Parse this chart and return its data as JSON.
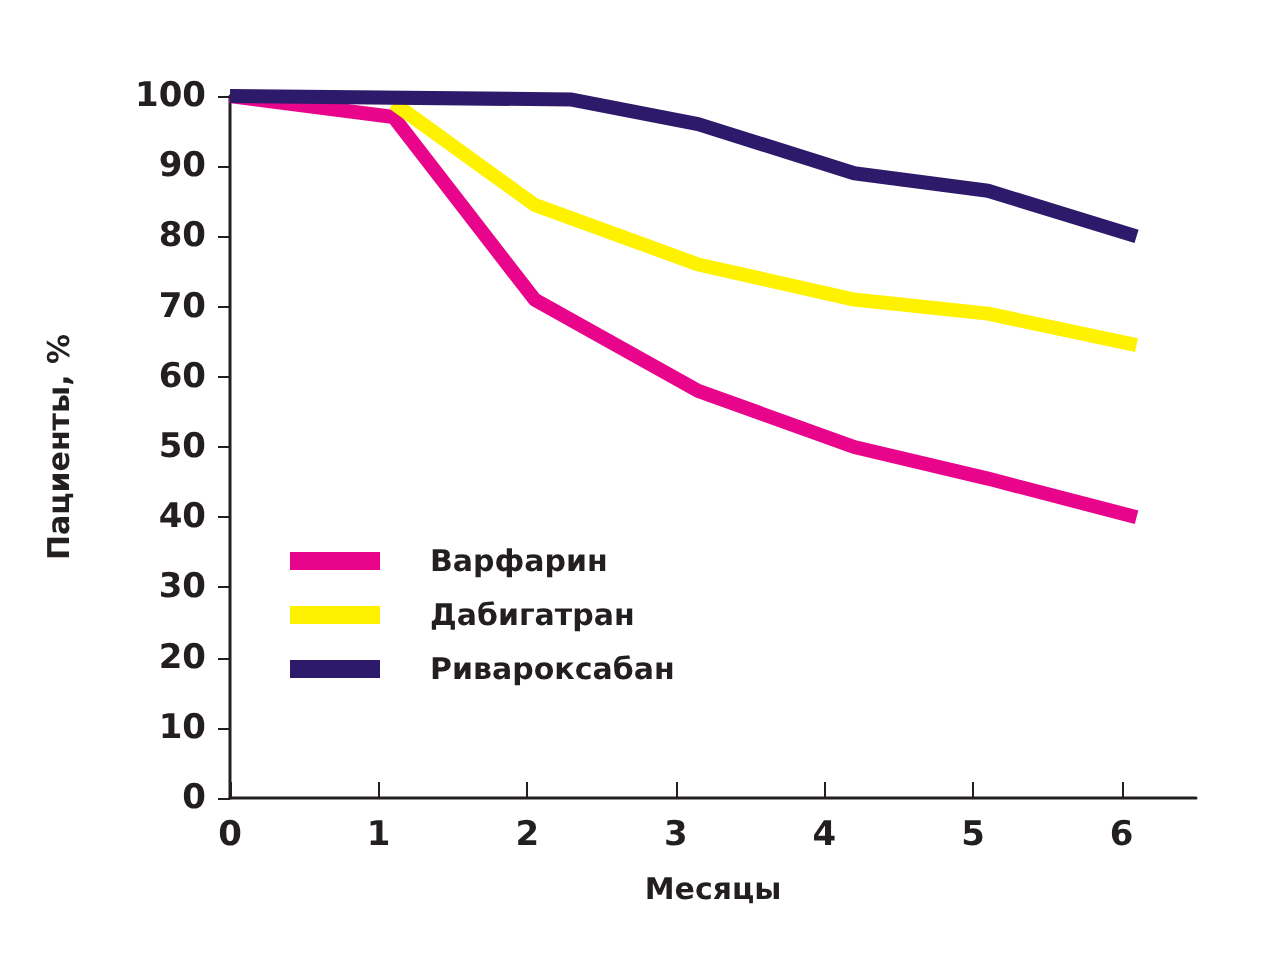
{
  "chart_data": {
    "type": "line",
    "xlabel": "Месяцы",
    "ylabel": "Пациенты, %",
    "xlim": [
      0,
      6.5
    ],
    "xticks": [
      0,
      1,
      2,
      3,
      4,
      5,
      6
    ],
    "ylim": [
      0,
      100
    ],
    "yticks": [
      0,
      10,
      20,
      30,
      40,
      50,
      60,
      70,
      80,
      90,
      100
    ],
    "grid": false,
    "legend": "bottom left",
    "marker": "none",
    "line_style": "solid",
    "series": [
      {
        "name": "Варфарин",
        "color": "#e8058c",
        "x": [
          0,
          1.1,
          2.05,
          3.15,
          4.2,
          5.1,
          6.1
        ],
        "values": [
          100,
          97,
          71,
          58,
          50,
          45.5,
          40
        ]
      },
      {
        "name": "Дабигатран",
        "color": "#fff200",
        "x": [
          1.1,
          2.05,
          3.15,
          4.2,
          5.1,
          6.1
        ],
        "values": [
          99,
          84.5,
          76,
          71,
          69,
          64.5
        ]
      },
      {
        "name": "Ривароксабан",
        "color": "#2e1a6b",
        "x": [
          0,
          2.3,
          3.15,
          4.2,
          5.1,
          6.1
        ],
        "values": [
          100,
          99.5,
          96,
          89,
          86.5,
          80
        ]
      }
    ]
  }
}
